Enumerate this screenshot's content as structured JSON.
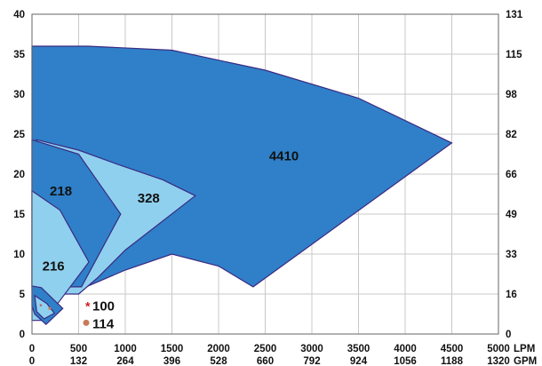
{
  "chart_data": {
    "type": "area",
    "title": "",
    "x_unit_primary": "LPM",
    "x_unit_secondary": "GPM",
    "xlim": [
      0,
      5000
    ],
    "ylim": [
      0,
      40
    ],
    "x_ticks": [
      0,
      500,
      1000,
      1500,
      2000,
      2500,
      3000,
      3500,
      4000,
      4500,
      5000
    ],
    "x_ticks_secondary": [
      "0",
      "132",
      "264",
      "396",
      "528",
      "660",
      "792",
      "924",
      "1056",
      "1188",
      "1320"
    ],
    "y_ticks_left": [
      0,
      5,
      10,
      15,
      20,
      25,
      30,
      35,
      40
    ],
    "y_ticks_right": [
      "0",
      "16",
      "33",
      "49",
      "66",
      "82",
      "98",
      "115",
      "131"
    ],
    "grid": true,
    "colors": {
      "dark": "#2f80c8",
      "light": "#8fd0ee",
      "outline": "#3a2a82",
      "marker_100": "#cc2020",
      "marker_114": "#c87a5a"
    },
    "regions": [
      {
        "name": "4410",
        "fill": "dark",
        "points": [
          [
            0,
            36
          ],
          [
            600,
            36
          ],
          [
            1500,
            35.5
          ],
          [
            2500,
            33
          ],
          [
            3500,
            29.5
          ],
          [
            4500,
            23.9
          ],
          [
            2370,
            5.9
          ],
          [
            2000,
            8.5
          ],
          [
            1500,
            10
          ],
          [
            1000,
            8
          ],
          [
            600,
            6
          ],
          [
            0,
            6
          ]
        ]
      },
      {
        "name": "328",
        "fill": "light",
        "points": [
          [
            50,
            24.3
          ],
          [
            500,
            23
          ],
          [
            900,
            21.3
          ],
          [
            1400,
            19.3
          ],
          [
            1750,
            17.3
          ],
          [
            1000,
            10.5
          ],
          [
            700,
            7
          ],
          [
            500,
            5
          ],
          [
            50,
            5
          ]
        ]
      },
      {
        "name": "218",
        "fill": "dark",
        "points": [
          [
            0,
            24.3
          ],
          [
            500,
            22.5
          ],
          [
            950,
            15
          ],
          [
            530,
            5.9
          ],
          [
            0,
            5.9
          ]
        ]
      },
      {
        "name": "216",
        "fill": "light",
        "points": [
          [
            0,
            17.9
          ],
          [
            300,
            15.5
          ],
          [
            610,
            9
          ],
          [
            140,
            1.7
          ],
          [
            0,
            1.7
          ]
        ]
      },
      {
        "name": "100",
        "fill": "dark",
        "points": [
          [
            0,
            6
          ],
          [
            100,
            5.8
          ],
          [
            330,
            3.2
          ],
          [
            150,
            1.2
          ],
          [
            30,
            2.5
          ],
          [
            0,
            3.5
          ]
        ]
      },
      {
        "name": "114",
        "fill": "light",
        "points": [
          [
            30,
            4.8
          ],
          [
            160,
            3.8
          ],
          [
            240,
            2.6
          ],
          [
            130,
            1.9
          ],
          [
            50,
            2.8
          ]
        ]
      }
    ],
    "region_labels": [
      {
        "text": "4410",
        "x": 2700,
        "y": 22.3
      },
      {
        "text": "328",
        "x": 1250,
        "y": 17
      },
      {
        "text": "218",
        "x": 310,
        "y": 17.9
      },
      {
        "text": "216",
        "x": 230,
        "y": 8.5
      }
    ],
    "legend": [
      {
        "text": "100",
        "marker": "star",
        "color": "marker_100"
      },
      {
        "text": "114",
        "marker": "dot",
        "color": "marker_114"
      }
    ]
  }
}
